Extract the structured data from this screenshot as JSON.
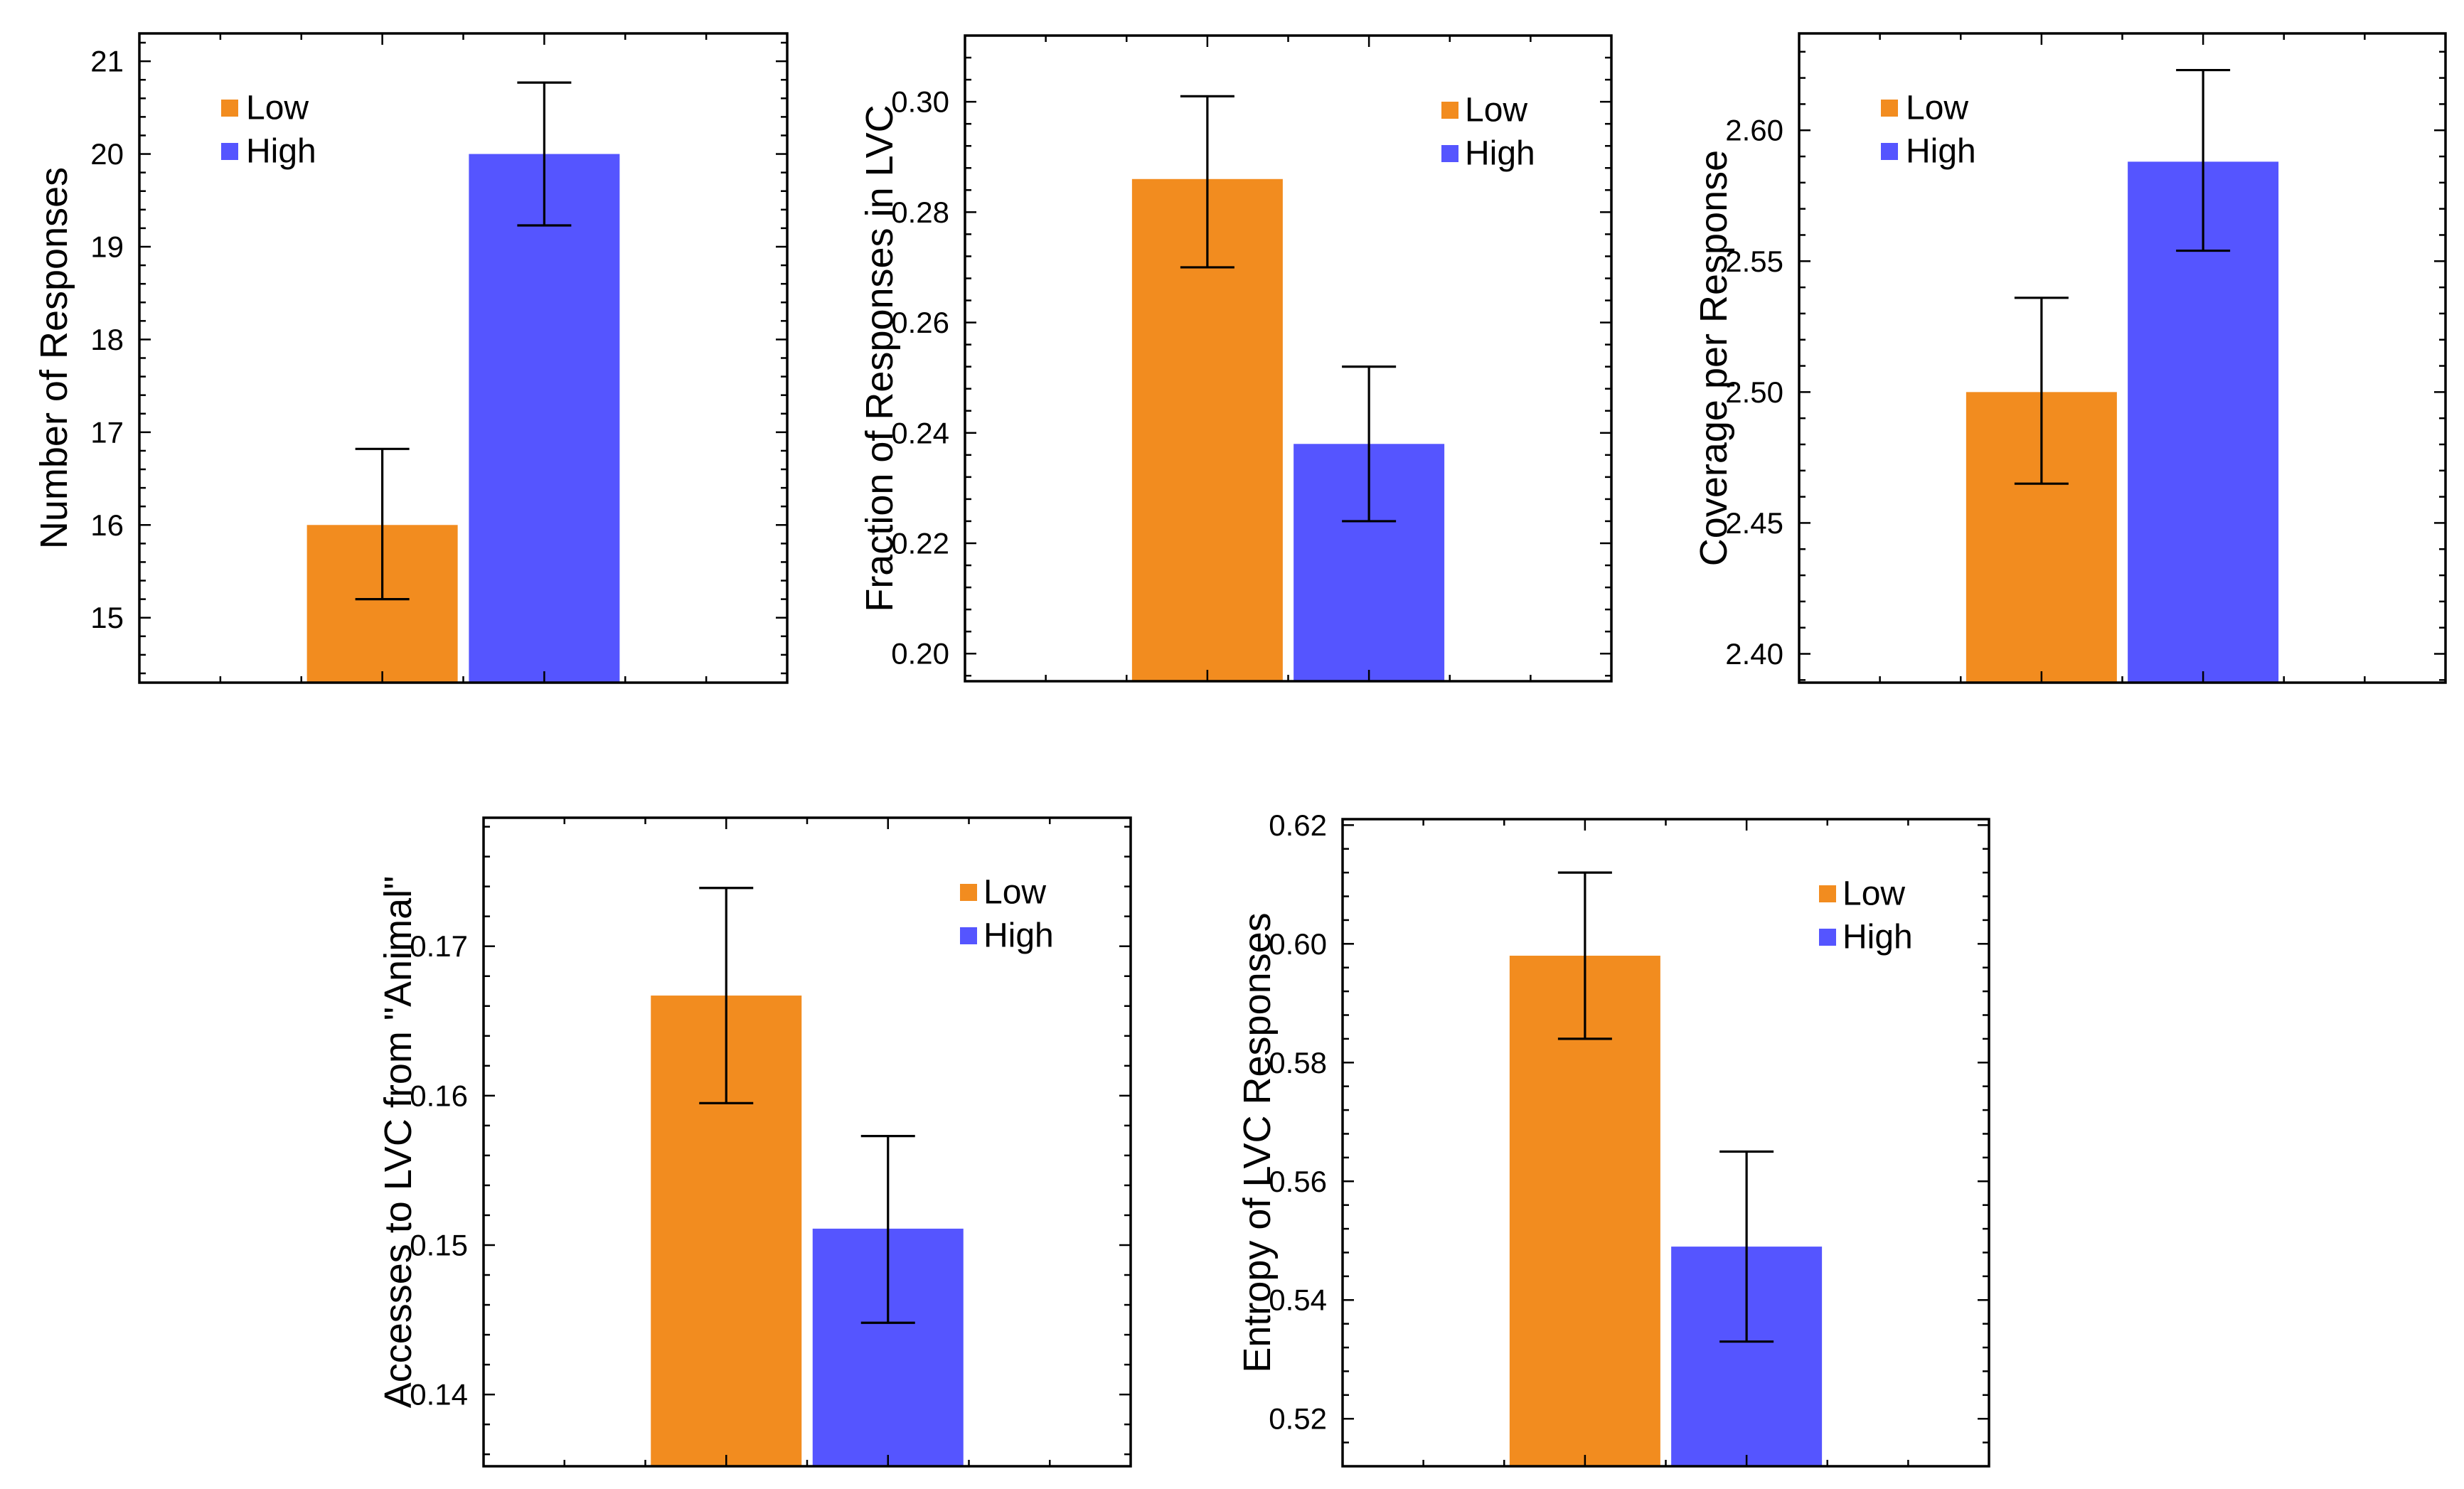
{
  "chart_data": [
    {
      "type": "bar",
      "categories": [
        "Low",
        "High"
      ],
      "values": [
        16.0,
        20.0
      ],
      "error_low": [
        15.2,
        19.23
      ],
      "error_high": [
        16.82,
        20.77
      ],
      "title": "",
      "xlabel": "",
      "ylabel": "Number of Responses",
      "ylim": [
        14.3,
        21.3
      ],
      "yticks": [
        15,
        16,
        17,
        18,
        19,
        20,
        21
      ],
      "tick_labels": [
        "15",
        "16",
        "17",
        "18",
        "19",
        "20",
        "21"
      ],
      "legend": [
        "Low",
        "High"
      ],
      "legend_position": "top-left"
    },
    {
      "type": "bar",
      "categories": [
        "Low",
        "High"
      ],
      "values": [
        0.286,
        0.238
      ],
      "error_low": [
        0.27,
        0.224
      ],
      "error_high": [
        0.301,
        0.252
      ],
      "title": "",
      "xlabel": "",
      "ylabel": "Fraction of Responses in LVC",
      "ylim": [
        0.195,
        0.312
      ],
      "yticks": [
        0.2,
        0.22,
        0.24,
        0.26,
        0.28,
        0.3
      ],
      "tick_labels": [
        "0.20",
        "0.22",
        "0.24",
        "0.26",
        "0.28",
        "0.30"
      ],
      "legend": [
        "Low",
        "High"
      ],
      "legend_position": "top-right"
    },
    {
      "type": "bar",
      "categories": [
        "Low",
        "High"
      ],
      "values": [
        2.5,
        2.588
      ],
      "error_low": [
        2.465,
        2.554
      ],
      "error_high": [
        2.536,
        2.623
      ],
      "title": "",
      "xlabel": "",
      "ylabel": "Coverage per Response",
      "ylim": [
        2.389,
        2.637
      ],
      "yticks": [
        2.4,
        2.45,
        2.5,
        2.55,
        2.6
      ],
      "tick_labels": [
        "2.40",
        "2.45",
        "2.50",
        "2.55",
        "2.60"
      ],
      "legend": [
        "Low",
        "High"
      ],
      "legend_position": "top-left"
    },
    {
      "type": "bar",
      "categories": [
        "Low",
        "High"
      ],
      "values": [
        0.1667,
        0.1511
      ],
      "error_low": [
        0.1595,
        0.1448
      ],
      "error_high": [
        0.1739,
        0.1573
      ],
      "title": "",
      "xlabel": "",
      "ylabel": "Accesses to LVC from \"Animal\"",
      "ylim": [
        0.1352,
        0.1786
      ],
      "yticks": [
        0.14,
        0.15,
        0.16,
        0.17
      ],
      "tick_labels": [
        "0.14",
        "0.15",
        "0.16",
        "0.17"
      ],
      "legend": [
        "Low",
        "High"
      ],
      "legend_position": "top-right"
    },
    {
      "type": "bar",
      "categories": [
        "Low",
        "High"
      ],
      "values": [
        0.598,
        0.549
      ],
      "error_low": [
        0.584,
        0.533
      ],
      "error_high": [
        0.612,
        0.565
      ],
      "title": "",
      "xlabel": "",
      "ylabel": "Entropy of LVC Responses",
      "ylim": [
        0.512,
        0.621
      ],
      "yticks": [
        0.52,
        0.54,
        0.56,
        0.58,
        0.6,
        0.62
      ],
      "tick_labels": [
        "0.52",
        "0.54",
        "0.56",
        "0.58",
        "0.60",
        "0.62"
      ],
      "legend": [
        "Low",
        "High"
      ],
      "legend_position": "top-right"
    }
  ],
  "colors": {
    "low": "#f28c1f",
    "high": "#5555ff",
    "axis": "#000000"
  }
}
